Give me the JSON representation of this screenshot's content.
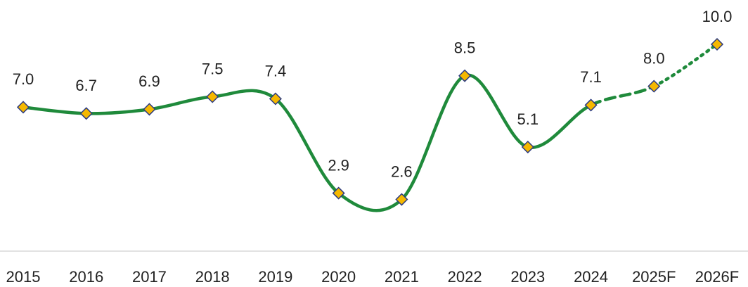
{
  "chart_data": {
    "type": "line",
    "categories": [
      "2015",
      "2016",
      "2017",
      "2018",
      "2019",
      "2020",
      "2021",
      "2022",
      "2023",
      "2024",
      "2025F",
      "2026F"
    ],
    "values": [
      7.0,
      6.7,
      6.9,
      7.5,
      7.4,
      2.9,
      2.6,
      8.5,
      5.1,
      7.1,
      8.0,
      10.0
    ],
    "value_labels": [
      "7.0",
      "6.7",
      "6.9",
      "7.5",
      "7.4",
      "2.9",
      "2.6",
      "8.5",
      "5.1",
      "7.1",
      "8.0",
      "10.0"
    ],
    "segment_styles": [
      null,
      "solid",
      "solid",
      "solid",
      "solid",
      "solid",
      "solid",
      "solid",
      "solid",
      "solid",
      "dashed",
      "dotted"
    ],
    "color": "#1f8a3b",
    "marker_color": "#f5b800",
    "ylim": [
      0,
      12
    ],
    "grid": false
  }
}
